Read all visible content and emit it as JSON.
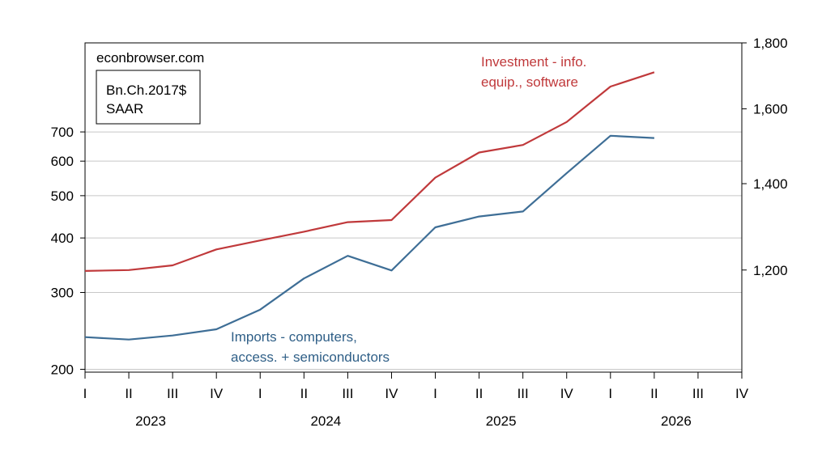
{
  "chart_data": {
    "type": "line",
    "source_text": "econbrowser.com",
    "units": [
      "Bn.Ch.2017$",
      "SAAR"
    ],
    "x_quarters": [
      "I",
      "II",
      "III",
      "IV",
      "I",
      "II",
      "III",
      "IV",
      "I",
      "II",
      "III",
      "IV",
      "I",
      "II",
      "III",
      "IV"
    ],
    "x_years": [
      "2023",
      "2024",
      "2025",
      "2026"
    ],
    "left_axis": {
      "scale": "log",
      "ticks": [
        200,
        300,
        400,
        500,
        600,
        700
      ],
      "tick_labels": [
        "200",
        "300",
        "400",
        "500",
        "600",
        "700"
      ],
      "range": [
        197,
        1120
      ]
    },
    "right_axis": {
      "scale": "log",
      "ticks": [
        1200,
        1400,
        1600,
        1800
      ],
      "tick_labels": [
        "1,200",
        "1,400",
        "1,600",
        "1,800"
      ],
      "range": [
        1000,
        1800
      ]
    },
    "grid": true,
    "series": [
      {
        "name_lines": [
          "Investment - info.",
          "equip., software"
        ],
        "axis": "right",
        "color": "#c0393b",
        "x": [
          "2023Q1",
          "2023Q2",
          "2023Q3",
          "2023Q4",
          "2024Q1",
          "2024Q2",
          "2024Q3",
          "2024Q4",
          "2025Q1",
          "2025Q2",
          "2025Q3",
          "2025Q4",
          "2026Q1",
          "2026Q2"
        ],
        "values": [
          1198,
          1200,
          1210,
          1245,
          1265,
          1285,
          1307,
          1312,
          1415,
          1480,
          1500,
          1563,
          1665,
          1708
        ]
      },
      {
        "name_lines": [
          "Imports - computers,",
          "access. + semiconductors"
        ],
        "axis": "left",
        "color": "#3e6e96",
        "x": [
          "2023Q1",
          "2023Q2",
          "2023Q3",
          "2023Q4",
          "2024Q1",
          "2024Q2",
          "2024Q3",
          "2024Q4",
          "2025Q1",
          "2025Q2",
          "2025Q3",
          "2025Q4",
          "2026Q1",
          "2026Q2"
        ],
        "values": [
          237,
          234,
          239,
          247,
          274,
          323,
          364,
          337,
          423,
          448,
          460,
          563,
          686,
          678
        ]
      }
    ]
  }
}
